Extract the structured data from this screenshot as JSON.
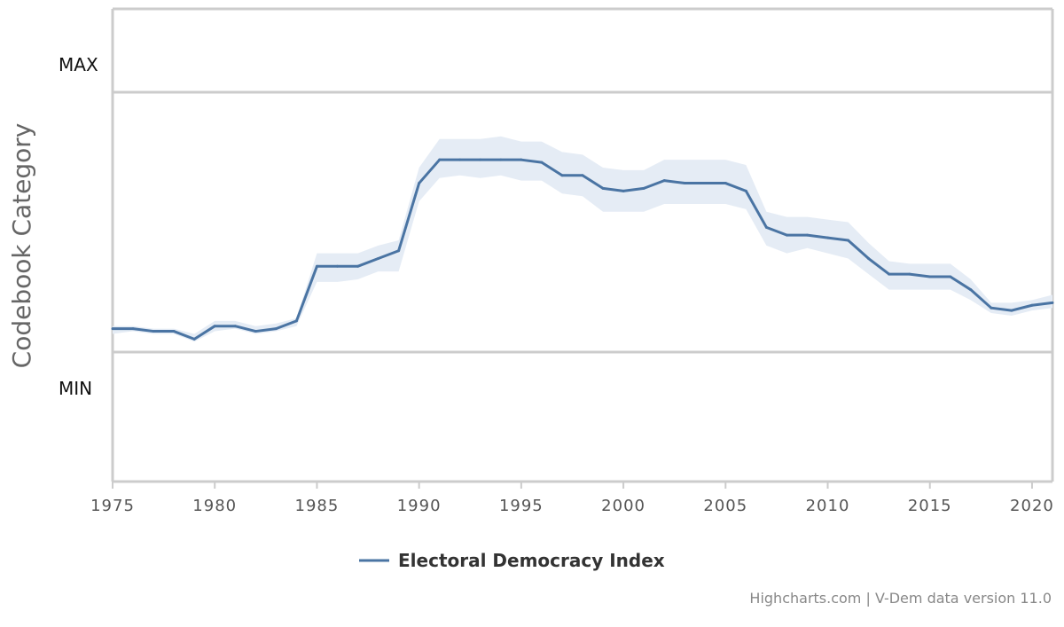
{
  "chart_data": {
    "type": "line",
    "ylabel": "Codebook Category",
    "y_categories": [
      "MAX",
      "MIN"
    ],
    "xlim": [
      1975,
      2021
    ],
    "x_ticks": [
      1975,
      1980,
      1985,
      1990,
      1995,
      2000,
      2005,
      2010,
      2015,
      2020
    ],
    "legend_position": "bottom-center",
    "credits": "Highcharts.com | V-Dem data version 11.0",
    "series": [
      {
        "name": "Electoral Democracy Index",
        "color": "#4a74a3",
        "band_color": "#e5ecf5",
        "x": [
          1975,
          1976,
          1977,
          1978,
          1979,
          1980,
          1981,
          1982,
          1983,
          1984,
          1985,
          1986,
          1987,
          1988,
          1989,
          1990,
          1991,
          1992,
          1993,
          1994,
          1995,
          1996,
          1997,
          1998,
          1999,
          2000,
          2001,
          2002,
          2003,
          2004,
          2005,
          2006,
          2007,
          2008,
          2009,
          2010,
          2011,
          2012,
          2013,
          2014,
          2015,
          2016,
          2017,
          2018,
          2019,
          2020,
          2021
        ],
        "values": [
          0.09,
          0.09,
          0.08,
          0.08,
          0.05,
          0.1,
          0.1,
          0.08,
          0.09,
          0.12,
          0.33,
          0.33,
          0.33,
          0.36,
          0.39,
          0.65,
          0.74,
          0.74,
          0.74,
          0.74,
          0.74,
          0.73,
          0.68,
          0.68,
          0.63,
          0.62,
          0.63,
          0.66,
          0.65,
          0.65,
          0.65,
          0.62,
          0.48,
          0.45,
          0.45,
          0.44,
          0.43,
          0.36,
          0.3,
          0.3,
          0.29,
          0.29,
          0.24,
          0.17,
          0.16,
          0.18,
          0.19
        ],
        "lower": [
          0.07,
          0.08,
          0.07,
          0.07,
          0.04,
          0.08,
          0.09,
          0.07,
          0.08,
          0.1,
          0.27,
          0.27,
          0.28,
          0.31,
          0.31,
          0.58,
          0.67,
          0.68,
          0.67,
          0.68,
          0.66,
          0.66,
          0.61,
          0.6,
          0.54,
          0.54,
          0.54,
          0.57,
          0.57,
          0.57,
          0.57,
          0.55,
          0.41,
          0.38,
          0.4,
          0.38,
          0.36,
          0.3,
          0.24,
          0.24,
          0.24,
          0.24,
          0.2,
          0.15,
          0.14,
          0.16,
          0.17
        ],
        "upper": [
          0.1,
          0.1,
          0.09,
          0.09,
          0.07,
          0.12,
          0.12,
          0.1,
          0.11,
          0.13,
          0.38,
          0.38,
          0.38,
          0.41,
          0.43,
          0.71,
          0.82,
          0.82,
          0.82,
          0.83,
          0.81,
          0.81,
          0.77,
          0.76,
          0.71,
          0.7,
          0.7,
          0.74,
          0.74,
          0.74,
          0.74,
          0.72,
          0.54,
          0.52,
          0.52,
          0.51,
          0.5,
          0.42,
          0.35,
          0.34,
          0.34,
          0.34,
          0.28,
          0.19,
          0.19,
          0.2,
          0.22
        ]
      }
    ]
  }
}
